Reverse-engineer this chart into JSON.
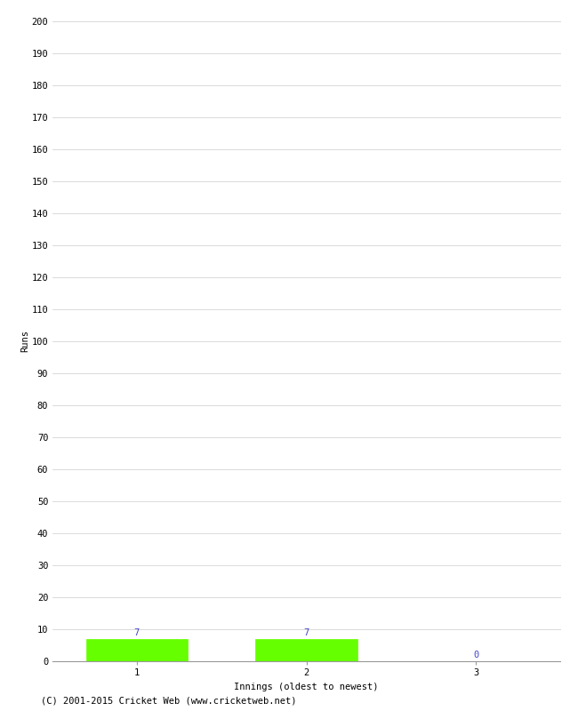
{
  "innings": [
    1,
    2,
    3
  ],
  "runs": [
    7,
    7,
    0
  ],
  "bar_color": "#66ff00",
  "bar_edge_color": "#66ff00",
  "ylim": [
    0,
    200
  ],
  "ytick_step": 10,
  "xlabel": "Innings (oldest to newest)",
  "ylabel": "Runs",
  "value_label_color": "#4444cc",
  "footer": "(C) 2001-2015 Cricket Web (www.cricketweb.net)",
  "background_color": "#ffffff",
  "grid_color": "#cccccc",
  "bar_width": 0.6,
  "axis_fontsize": 7.5,
  "label_fontsize": 7.5,
  "footer_fontsize": 7.5
}
